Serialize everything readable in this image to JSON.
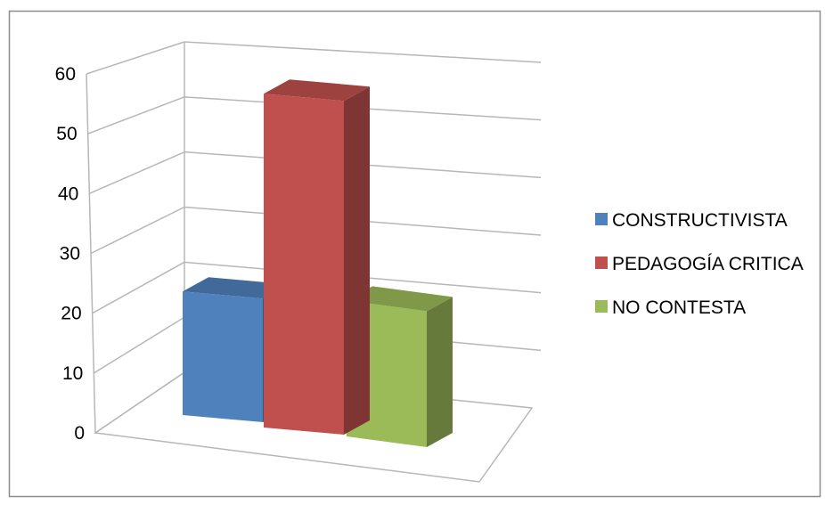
{
  "chart_data": {
    "type": "bar",
    "subtype": "3d-clustered-column",
    "title": "",
    "xlabel": "",
    "ylabel": "",
    "ylim": [
      0,
      60
    ],
    "yticks": [
      0,
      10,
      20,
      30,
      40,
      50,
      60
    ],
    "grid": true,
    "legend": "right",
    "series": [
      {
        "name": "CONSTRUCTIVISTA",
        "values": [
          20
        ],
        "color": "#4f81bd"
      },
      {
        "name": "PEDAGOGÍA CRITICA",
        "values": [
          54
        ],
        "color": "#c0504d"
      },
      {
        "name": "NO CONTESTA",
        "values": [
          22
        ],
        "color": "#9bbb59"
      }
    ]
  }
}
